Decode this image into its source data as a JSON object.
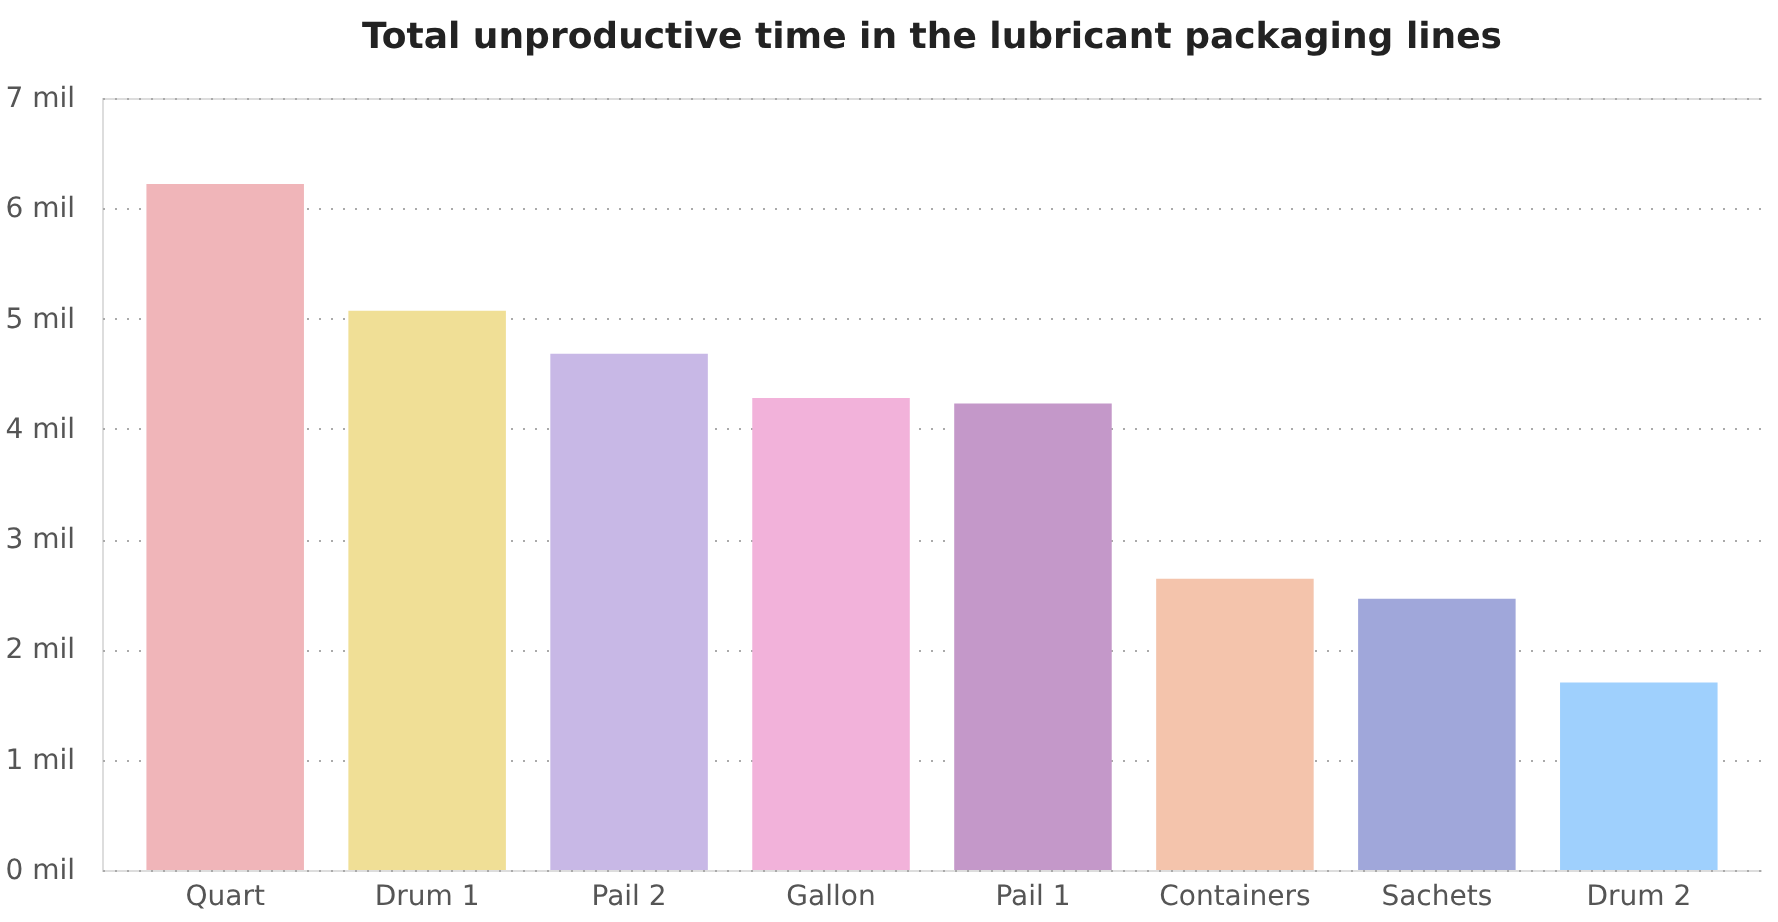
{
  "chart_data": {
    "type": "bar",
    "title": "Total unproductive time in the lubricant packaging lines",
    "categories": [
      "Quart",
      "Drum 1",
      "Pail 2",
      "Gallon",
      "Pail 1",
      "Containers",
      "Sachets",
      "Drum 2"
    ],
    "values": [
      6.22,
      5.07,
      4.68,
      4.28,
      4.23,
      2.64,
      2.46,
      1.7
    ],
    "colors": [
      "#f0b5b9",
      "#f0df96",
      "#c8b8e6",
      "#f2b2da",
      "#c498c9",
      "#f4c4ac",
      "#a0a7da",
      "#9fd0fd"
    ],
    "ylim": [
      0,
      7
    ],
    "yticks": [
      {
        "value": 0,
        "label": "0 mil"
      },
      {
        "value": 1,
        "label": "1 mil"
      },
      {
        "value": 2,
        "label": "2 mil"
      },
      {
        "value": 3,
        "label": "3 mil"
      },
      {
        "value": 4,
        "label": "4 mil"
      },
      {
        "value": 5,
        "label": "5 mil"
      },
      {
        "value": 6,
        "label": "6 mil"
      },
      {
        "value": 7,
        "label": "7 mil"
      }
    ],
    "grid": "y"
  }
}
